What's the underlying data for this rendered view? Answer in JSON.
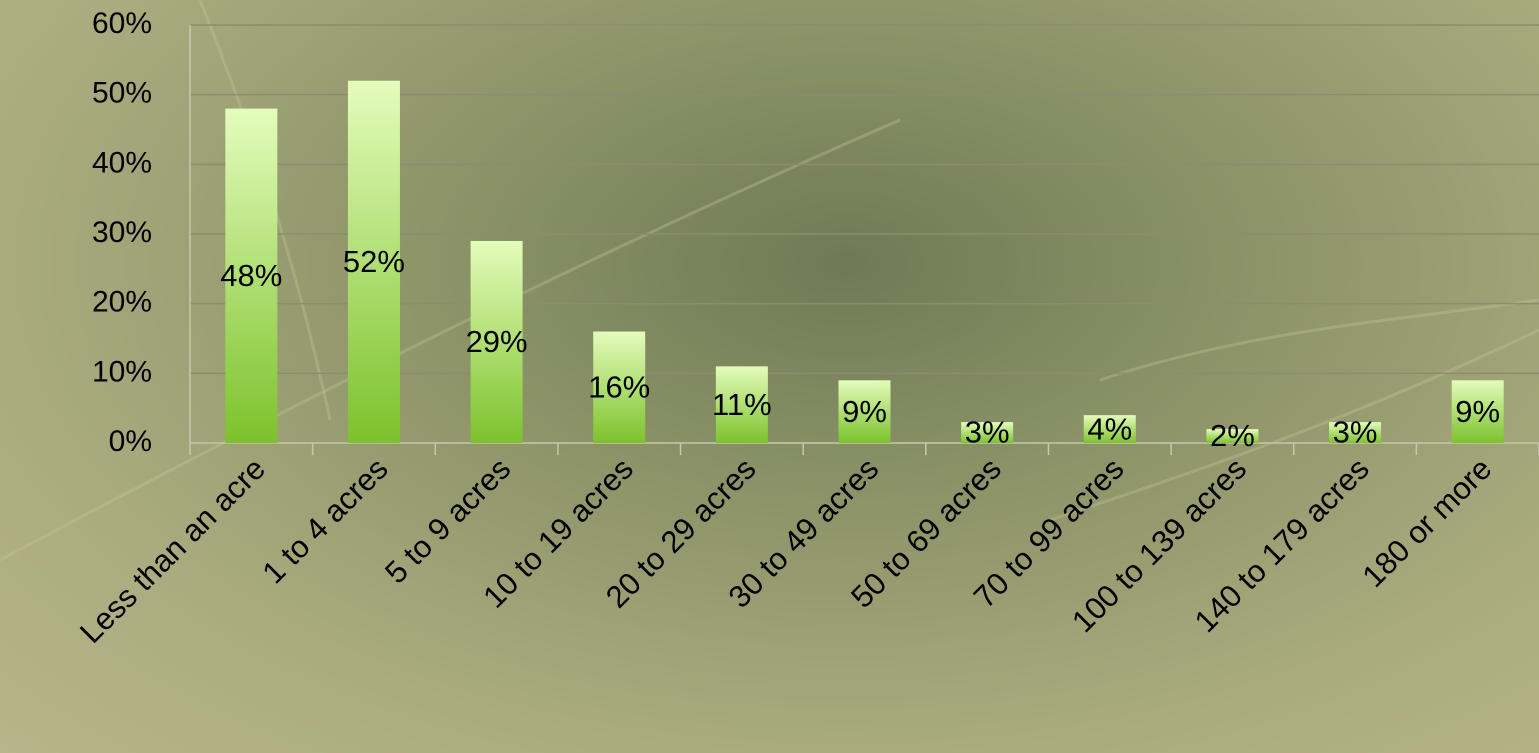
{
  "chart_data": {
    "type": "bar",
    "categories": [
      "Less than an acre",
      "1 to 4 acres",
      "5 to 9 acres",
      "10 to 19 acres",
      "20 to 29 acres",
      "30 to 49 acres",
      "50 to 69 acres",
      "70 to 99 acres",
      "100 to 139 acres",
      "140 to 179 acres",
      "180 or more"
    ],
    "values": [
      48,
      52,
      29,
      16,
      11,
      9,
      3,
      4,
      2,
      3,
      9
    ],
    "value_labels": [
      "48%",
      "52%",
      "29%",
      "16%",
      "11%",
      "9%",
      "3%",
      "4%",
      "2%",
      "3%",
      "9%"
    ],
    "gradient": [
      "#e4fcbc",
      "#7cc22c"
    ],
    "ylim": [
      0,
      60
    ],
    "yticks": [
      {
        "value": 0,
        "label": "0%"
      },
      {
        "value": 10,
        "label": "10%"
      },
      {
        "value": 20,
        "label": "20%"
      },
      {
        "value": 30,
        "label": "30%"
      },
      {
        "value": 40,
        "label": "40%"
      },
      {
        "value": 50,
        "label": "50%"
      },
      {
        "value": 60,
        "label": "60%"
      }
    ],
    "grid": true
  }
}
